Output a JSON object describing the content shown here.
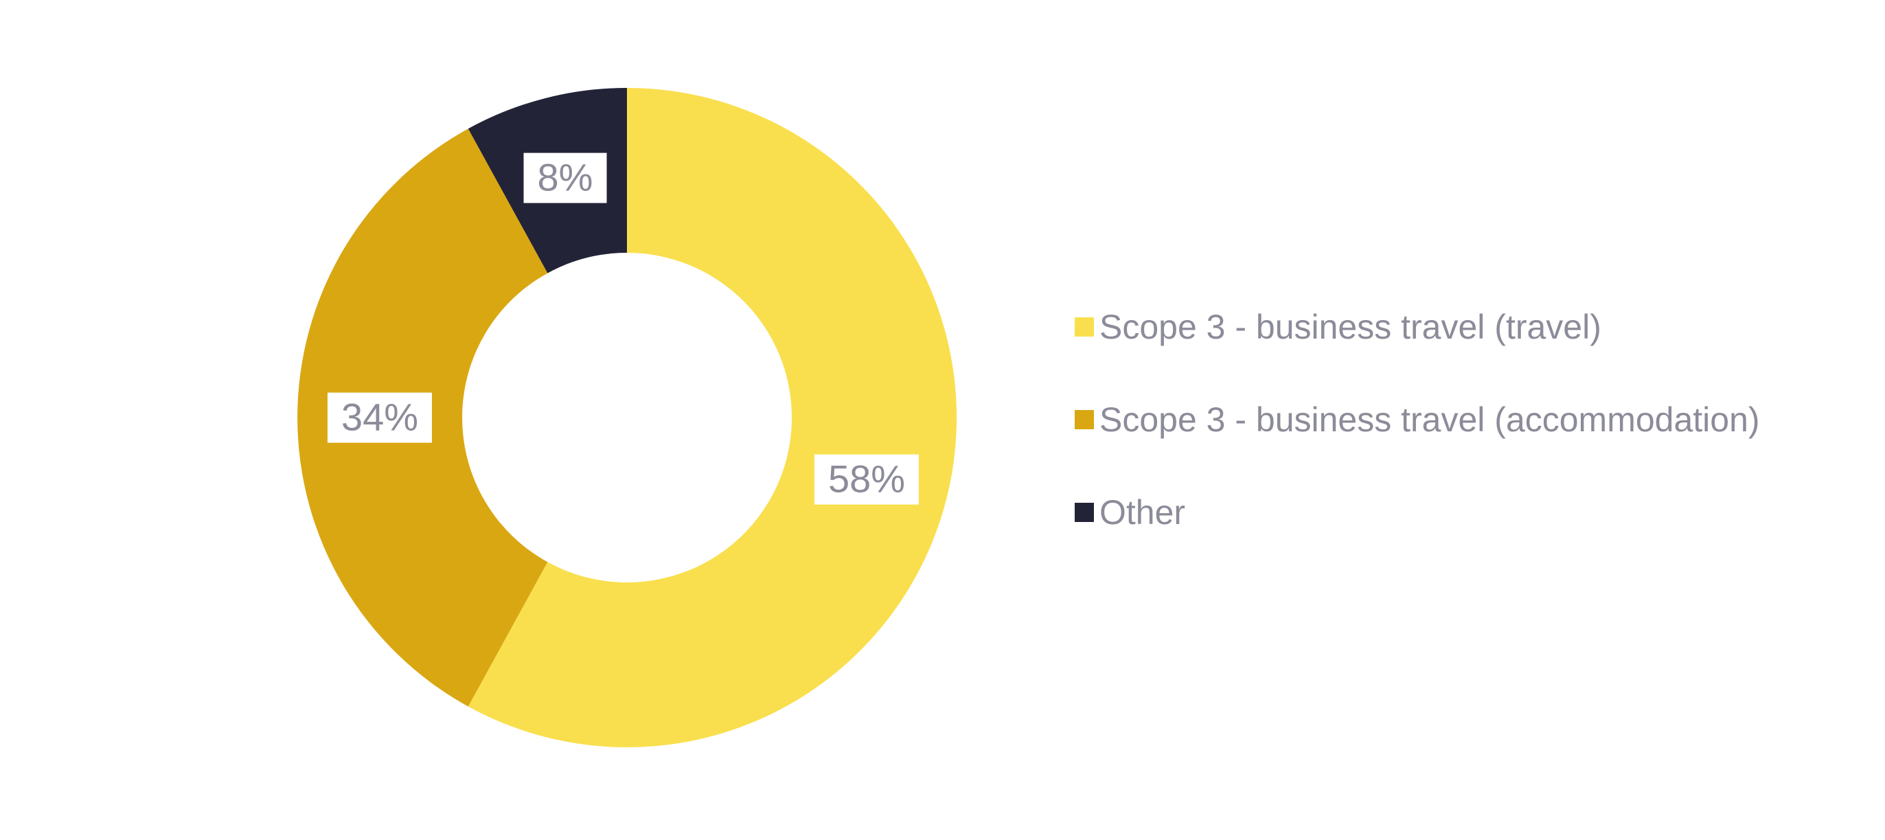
{
  "chart_data": {
    "type": "pie",
    "subtype": "donut",
    "title": "",
    "unit": "%",
    "categories": [
      "Scope 3 - business travel (travel)",
      "Scope 3 - business travel (accommodation)",
      "Other"
    ],
    "values": [
      58,
      34,
      8
    ],
    "segments": [
      {
        "label": "Scope 3 - business travel (travel)",
        "value": 58,
        "display": "58%",
        "color": "#F9DF4D"
      },
      {
        "label": "Scope 3 - business travel (accommodation)",
        "value": 34,
        "display": "34%",
        "color": "#D9A712"
      },
      {
        "label": "Other",
        "value": 8,
        "display": "8%",
        "color": "#232338"
      }
    ],
    "start_angle_deg": 0,
    "direction": "clockwise",
    "inner_radius_ratio": 0.5,
    "legend_position": "right",
    "slice_label_style": "percent-in-white-box"
  },
  "legend": {
    "items": [
      {
        "label": "Scope 3 - business travel (travel)",
        "color": "#F9DF4D"
      },
      {
        "label": "Scope 3 - business travel (accommodation)",
        "color": "#D9A712"
      },
      {
        "label": "Other",
        "color": "#232338"
      }
    ]
  },
  "colors": {
    "background": "#FFFFFF",
    "slice_label_text": "#8B8B99",
    "slice_label_bg": "#FFFFFF",
    "legend_text": "#8B8B99"
  }
}
